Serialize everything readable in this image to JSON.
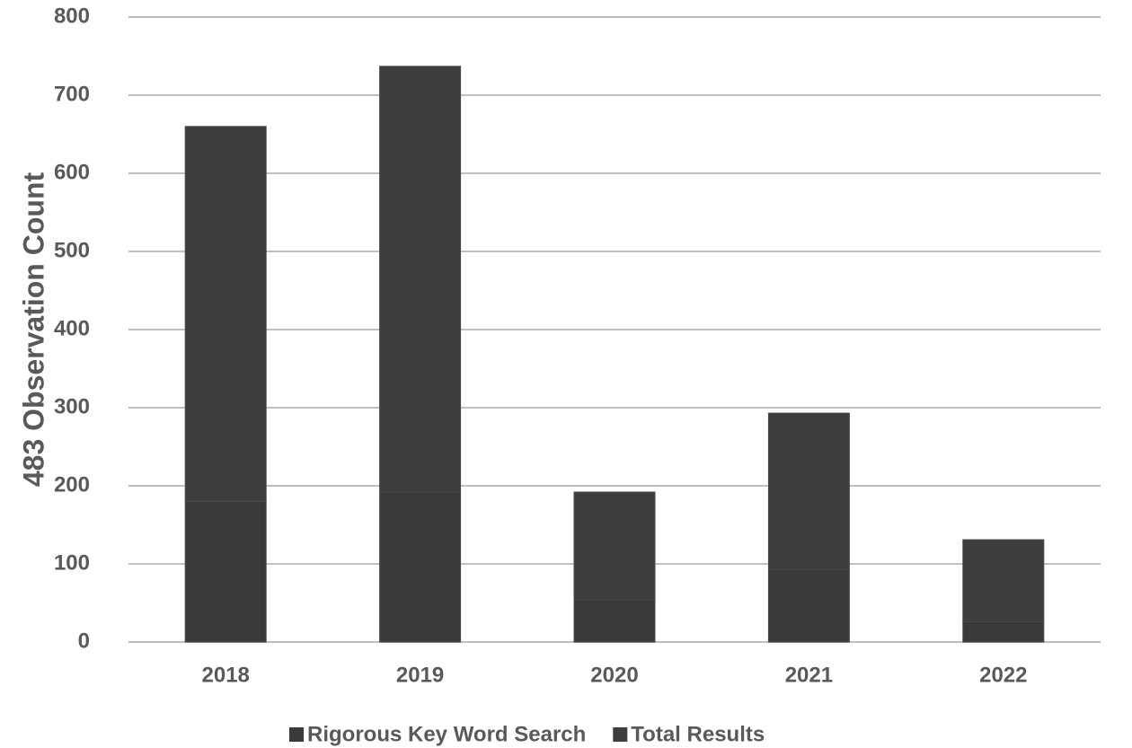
{
  "chart_data": {
    "type": "stacked_bar",
    "ylabel": "483 Observation Count",
    "categories": [
      "2018",
      "2019",
      "2020",
      "2021",
      "2022"
    ],
    "series": [
      {
        "name": "Rigorous Key Word Search",
        "color": "#3a3a3a",
        "values": [
          180,
          192,
          54,
          93,
          26
        ]
      },
      {
        "name": "Total Results",
        "color": "#3d3d3d",
        "values": [
          480,
          545,
          138,
          200,
          105
        ]
      }
    ],
    "ylim": [
      0,
      800
    ],
    "yticks": [
      0,
      100,
      200,
      300,
      400,
      500,
      600,
      700,
      800
    ],
    "grid": true,
    "legend": "bottom"
  }
}
